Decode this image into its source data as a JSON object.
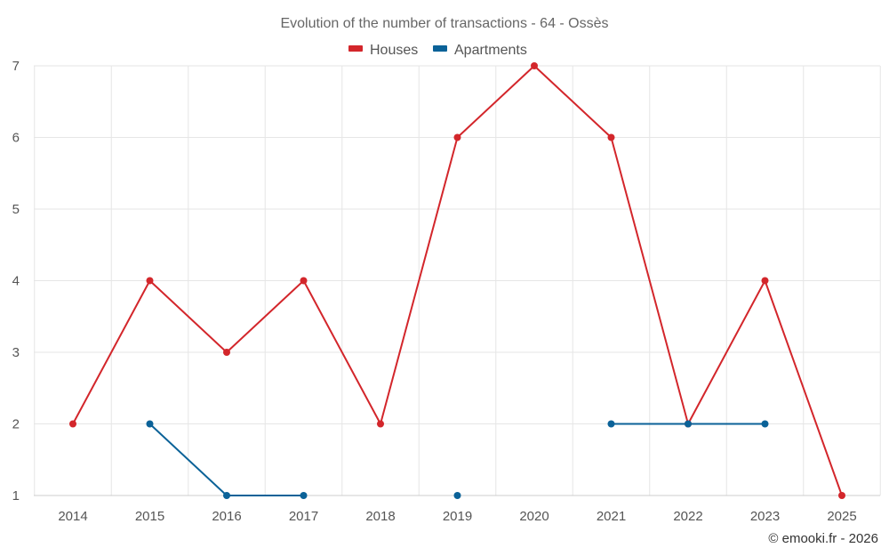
{
  "chart_data": {
    "type": "line",
    "title": "Evolution of the number of transactions - 64 - Ossès",
    "x": [
      "2014",
      "2015",
      "2016",
      "2017",
      "2018",
      "2019",
      "2020",
      "2021",
      "2022",
      "2023",
      "2025"
    ],
    "ylim": [
      1,
      7
    ],
    "yticks": [
      "1",
      "2",
      "3",
      "4",
      "5",
      "6",
      "7"
    ],
    "grid": true,
    "legend_position": "top-center",
    "series": [
      {
        "name": "Houses",
        "color": "#d3262b",
        "values": [
          2,
          4,
          3,
          4,
          2,
          6,
          7,
          6,
          2,
          4,
          1
        ]
      },
      {
        "name": "Apartments",
        "color": "#0b6298",
        "values": [
          null,
          2,
          1,
          1,
          null,
          1,
          null,
          2,
          2,
          2,
          null
        ]
      }
    ]
  },
  "credit": "© emooki.fr - 2026"
}
